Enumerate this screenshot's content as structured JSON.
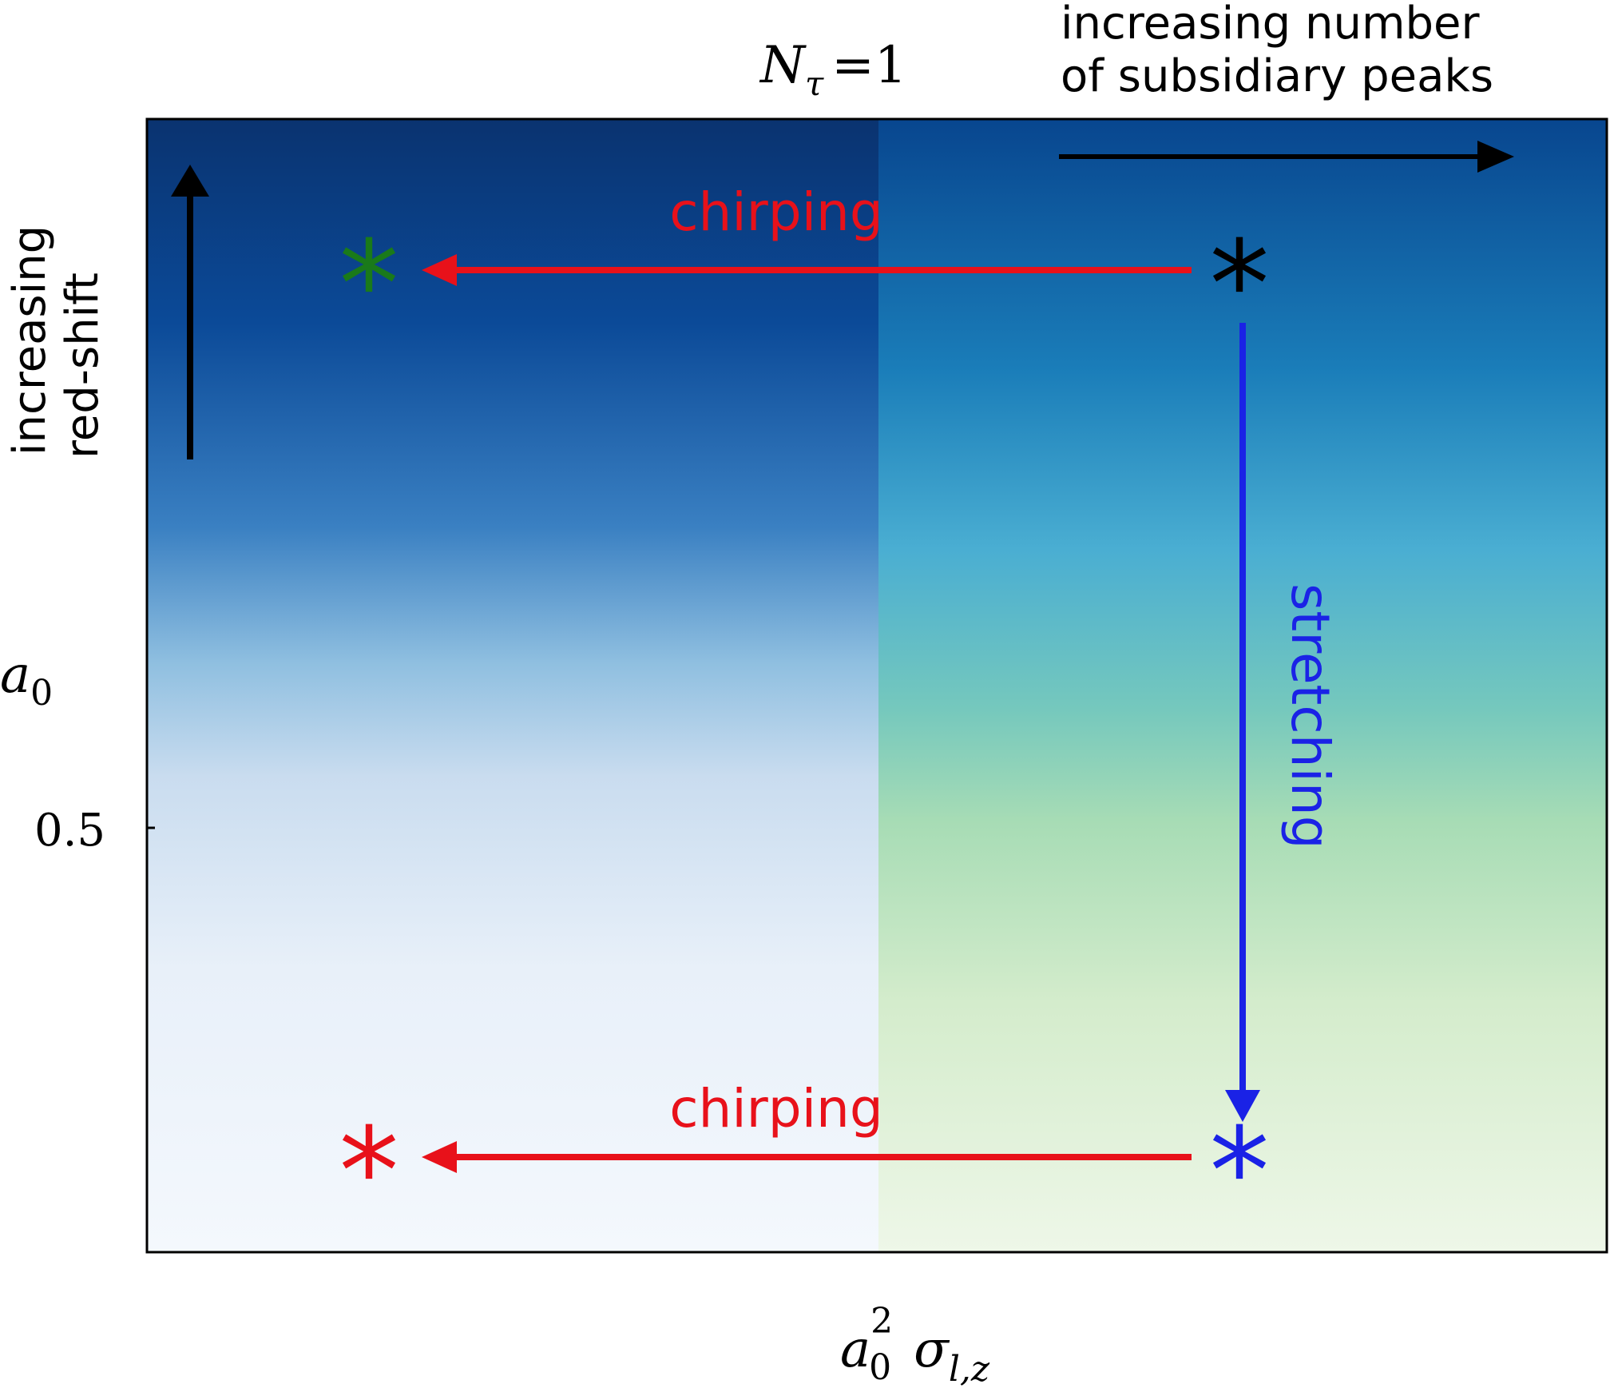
{
  "title": {
    "base": "N",
    "subscript": "τ",
    "relation": "=1"
  },
  "top_right_note": {
    "line1": "increasing number",
    "line2": "of subsidiary peaks"
  },
  "left_note": {
    "line1": "increasing",
    "line2": "red-shift"
  },
  "y_axis": {
    "label_base": "a",
    "label_subscript": "0",
    "tick_label": "0.5"
  },
  "x_axis": {
    "label_base": "a",
    "label_subscript": "0",
    "label_superscript": "2",
    "label_sigma": "σ",
    "label_sigma_subscript": "l,z"
  },
  "annotations": {
    "chirping_top": "chirping",
    "chirping_bottom": "chirping",
    "stretching": "stretching"
  },
  "markers": {
    "top_left": "*",
    "top_right": "*",
    "bottom_left": "*",
    "bottom_right": "*"
  },
  "colors": {
    "chirping": "#e8111a",
    "stretching": "#1a22e6",
    "marker_top_left": "#1a7a1a",
    "marker_top_right": "#000000",
    "marker_bottom_left": "#e8111a",
    "marker_bottom_right": "#1a22e6",
    "left_gradient": [
      "#0a3370",
      "#0b4a98",
      "#3a80c2",
      "#8fbfe0",
      "#c9dcef",
      "#e8f0f9",
      "#f4f8fd"
    ],
    "right_gradient": [
      "#08468f",
      "#1a7db9",
      "#4aaed2",
      "#75c8bd",
      "#a7dcb5",
      "#d4eccc",
      "#eef7e8"
    ]
  }
}
